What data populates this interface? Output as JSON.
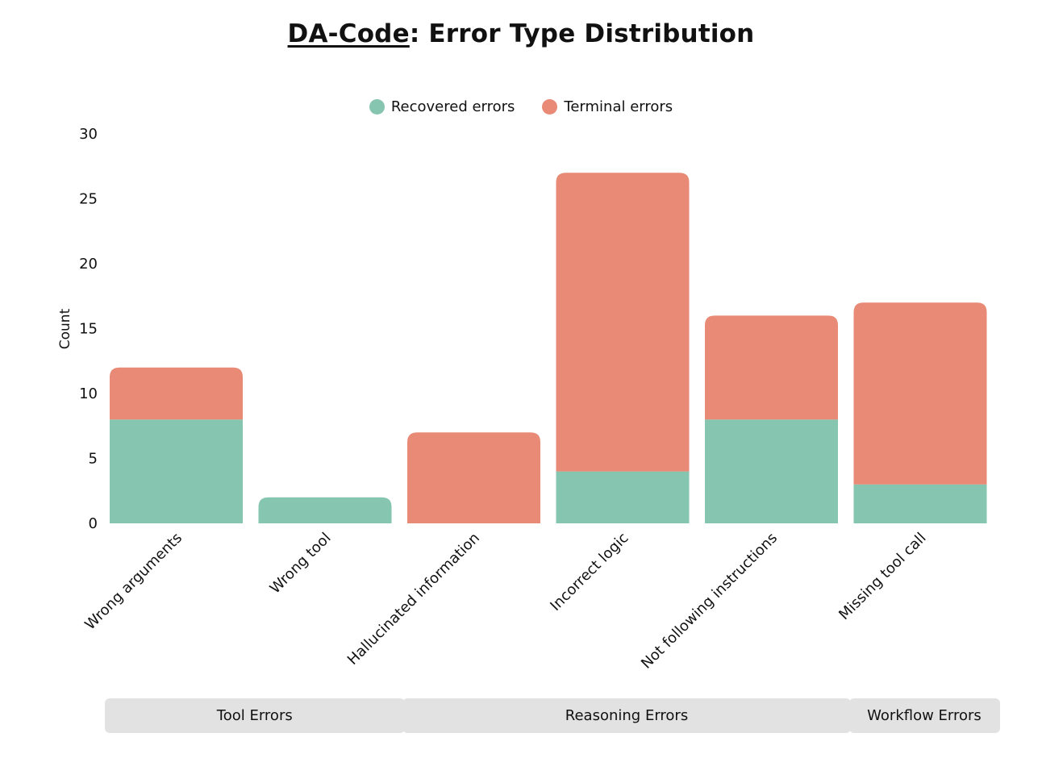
{
  "title_prefix": "DA-Code",
  "title_suffix": ": Error Type Distribution",
  "colors": {
    "recovered": "#86c5b0",
    "terminal": "#e88a75",
    "group_bg": "#e2e2e2"
  },
  "legend": [
    {
      "label": "Recovered errors",
      "color": "#86c5b0"
    },
    {
      "label": "Terminal errors",
      "color": "#e88a75"
    }
  ],
  "chart_data": {
    "type": "bar",
    "stacked": true,
    "title": "DA-Code: Error Type Distribution",
    "xlabel": "",
    "ylabel": "Count",
    "ylim": [
      0,
      30
    ],
    "yticks": [
      0,
      5,
      10,
      15,
      20,
      25,
      30
    ],
    "categories": [
      "Wrong arguments",
      "Wrong tool",
      "Hallucinated information",
      "Incorrect logic",
      "Not following instructions",
      "Missing tool call"
    ],
    "series": [
      {
        "name": "Recovered errors",
        "values": [
          8,
          2,
          0,
          4,
          8,
          3
        ]
      },
      {
        "name": "Terminal errors",
        "values": [
          4,
          0,
          7,
          23,
          8,
          14
        ]
      }
    ],
    "groups": [
      {
        "label": "Tool Errors",
        "start": 0,
        "end": 1
      },
      {
        "label": "Reasoning Errors",
        "start": 2,
        "end": 4
      },
      {
        "label": "Workflow Errors",
        "start": 5,
        "end": 5
      }
    ],
    "legend_position": "top-center"
  }
}
